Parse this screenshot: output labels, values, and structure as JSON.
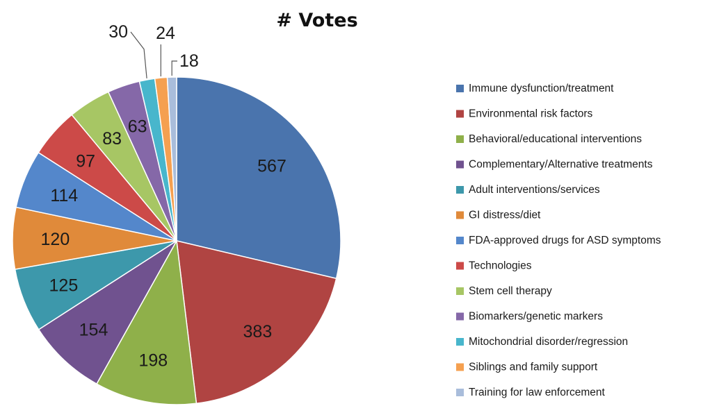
{
  "chart_data": {
    "type": "pie",
    "title": "# Votes",
    "legend_position": "right",
    "slices": [
      {
        "label": "Immune dysfunction/treatment",
        "value": 567,
        "color": "#4a74ad"
      },
      {
        "label": "Environmental risk factors",
        "value": 383,
        "color": "#b04442"
      },
      {
        "label": "Behavioral/educational interventions",
        "value": 198,
        "color": "#8fb04a"
      },
      {
        "label": "Complementary/Alternative treatments",
        "value": 154,
        "color": "#70528f"
      },
      {
        "label": "Adult interventions/services",
        "value": 125,
        "color": "#3d98ab"
      },
      {
        "label": "GI distress/diet",
        "value": 120,
        "color": "#e08a3a"
      },
      {
        "label": "FDA-approved drugs for ASD symptoms",
        "value": 114,
        "color": "#5487cb"
      },
      {
        "label": "Technologies",
        "value": 97,
        "color": "#cc4a48"
      },
      {
        "label": "Stem cell therapy",
        "value": 83,
        "color": "#a7c664"
      },
      {
        "label": "Biomarkers/genetic markers",
        "value": 63,
        "color": "#8568a8"
      },
      {
        "label": "Mitochondrial disorder/regression",
        "value": 30,
        "color": "#48b6cc"
      },
      {
        "label": "Siblings and family support",
        "value": 24,
        "color": "#f5a050"
      },
      {
        "label": "Training for law enforcement",
        "value": 18,
        "color": "#a9bddb"
      }
    ]
  }
}
